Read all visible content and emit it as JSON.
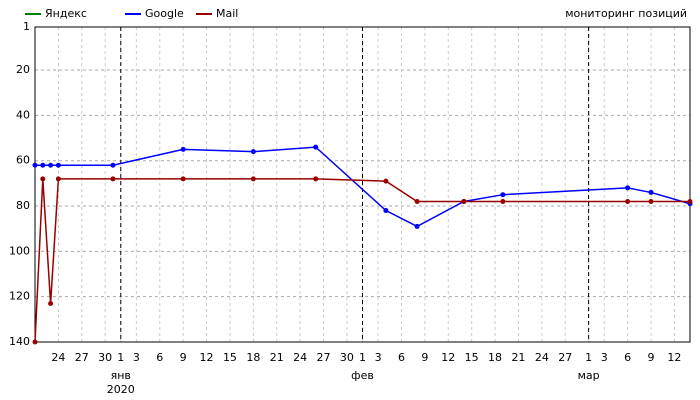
{
  "chart_data": {
    "type": "line",
    "title": "мониторинг позиций",
    "xlim": [
      0,
      84
    ],
    "ylim": [
      1,
      140
    ],
    "y_inverted": true,
    "grid": true,
    "legend": "top-left",
    "yticks": [
      1,
      20,
      40,
      60,
      80,
      100,
      120,
      140
    ],
    "xticks": [
      {
        "value": 3,
        "label": "24"
      },
      {
        "value": 6,
        "label": "27"
      },
      {
        "value": 9,
        "label": "30"
      },
      {
        "value": 11,
        "label": "1"
      },
      {
        "value": 13,
        "label": "3"
      },
      {
        "value": 16,
        "label": "6"
      },
      {
        "value": 19,
        "label": "9"
      },
      {
        "value": 22,
        "label": "12"
      },
      {
        "value": 25,
        "label": "15"
      },
      {
        "value": 28,
        "label": "18"
      },
      {
        "value": 31,
        "label": "21"
      },
      {
        "value": 34,
        "label": "24"
      },
      {
        "value": 37,
        "label": "27"
      },
      {
        "value": 40,
        "label": "30"
      },
      {
        "value": 42,
        "label": "1"
      },
      {
        "value": 44,
        "label": "3"
      },
      {
        "value": 47,
        "label": "6"
      },
      {
        "value": 50,
        "label": "9"
      },
      {
        "value": 53,
        "label": "12"
      },
      {
        "value": 56,
        "label": "15"
      },
      {
        "value": 59,
        "label": "18"
      },
      {
        "value": 62,
        "label": "21"
      },
      {
        "value": 65,
        "label": "24"
      },
      {
        "value": 68,
        "label": "27"
      },
      {
        "value": 71,
        "label": "1"
      },
      {
        "value": 73,
        "label": "3"
      },
      {
        "value": 76,
        "label": "6"
      },
      {
        "value": 79,
        "label": "9"
      },
      {
        "value": 82,
        "label": "12"
      }
    ],
    "month_ticks": [
      {
        "value": 11,
        "label": "янв"
      },
      {
        "value": 42,
        "label": "фев"
      },
      {
        "value": 71,
        "label": "мар"
      }
    ],
    "year": {
      "value": 11,
      "label": "2020"
    },
    "series": [
      {
        "name": "Яндекс",
        "color": "#008000",
        "x": [],
        "values": []
      },
      {
        "name": "Google",
        "color": "#0000ff",
        "x": [
          0,
          1,
          2,
          3,
          10,
          19,
          28,
          36,
          45,
          49,
          55,
          60,
          76,
          79,
          84
        ],
        "values": [
          62,
          62,
          62,
          62,
          62,
          55,
          56,
          54,
          82,
          89,
          78,
          75,
          72,
          74,
          79
        ]
      },
      {
        "name": "Mail",
        "color": "#990000",
        "x": [
          0,
          1,
          2,
          3,
          10,
          19,
          28,
          36,
          45,
          49,
          55,
          60,
          76,
          79,
          84
        ],
        "values": [
          140,
          68,
          123,
          68,
          68,
          68,
          68,
          68,
          69,
          78,
          78,
          78,
          78,
          78,
          78
        ]
      }
    ]
  }
}
